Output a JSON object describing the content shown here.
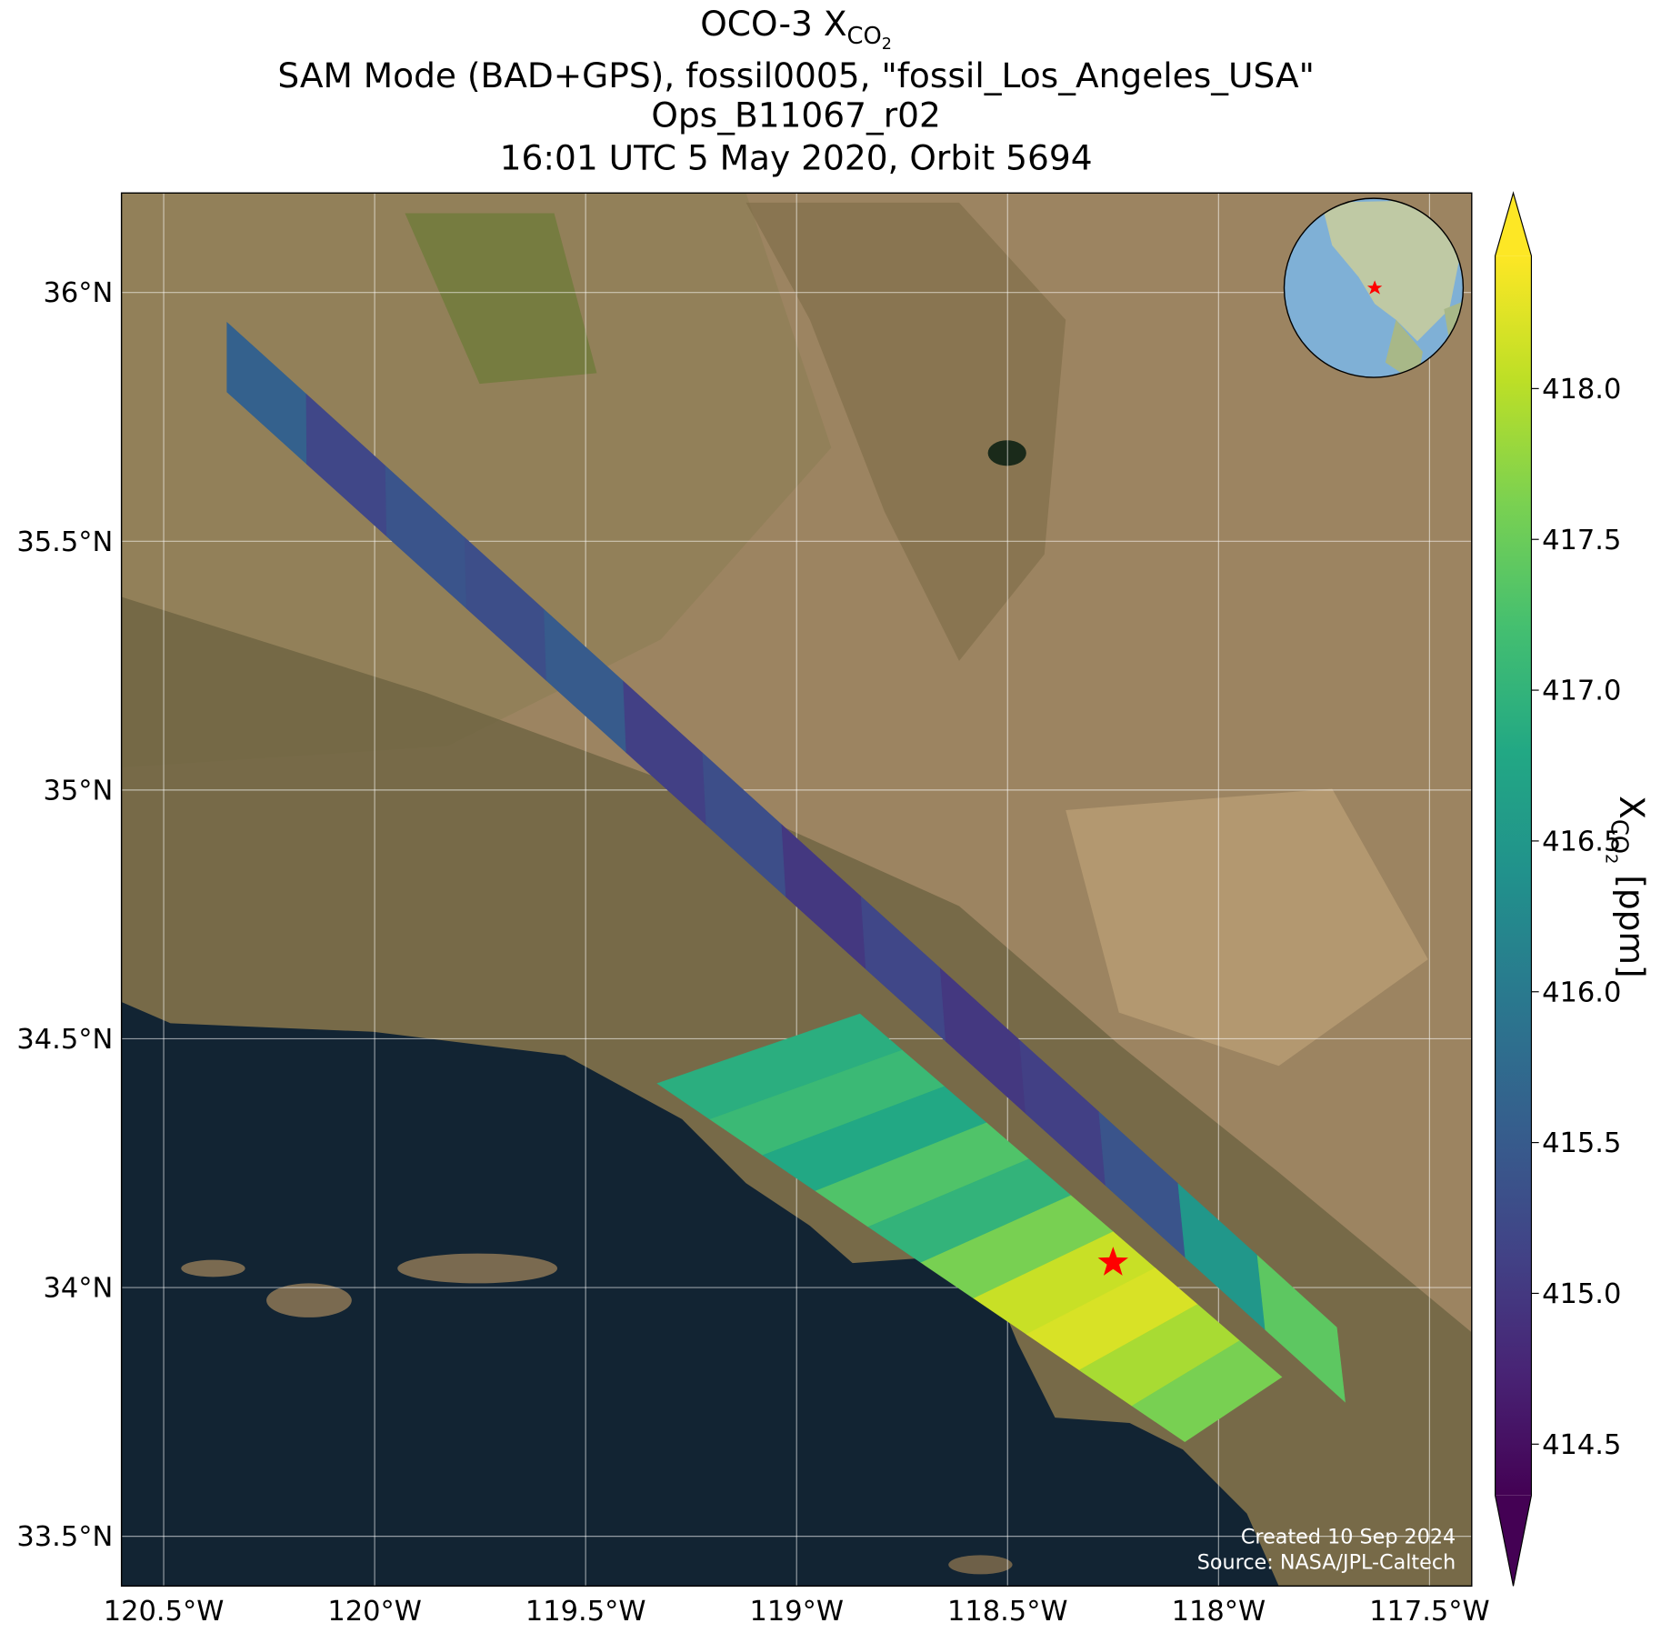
{
  "chart_data": {
    "type": "map",
    "title": {
      "line1": {
        "main": "OCO-3 X",
        "sub": "CO",
        "subsub": "2"
      },
      "line2": "SAM Mode (BAD+GPS), fossil0005, \"fossil_Los_Angeles_USA\"",
      "line3": "Ops_B11067_r02",
      "line4": "16:01 UTC 5 May 2020, Orbit 5694"
    },
    "xlim": [
      -120.6,
      -117.4
    ],
    "ylim": [
      33.4,
      36.2
    ],
    "xticks": [
      {
        "value": -120.5,
        "label": "120.5°W"
      },
      {
        "value": -120,
        "label": "120°W"
      },
      {
        "value": -119.5,
        "label": "119.5°W"
      },
      {
        "value": -119,
        "label": "119°W"
      },
      {
        "value": -118.5,
        "label": "118.5°W"
      },
      {
        "value": -118,
        "label": "118°W"
      },
      {
        "value": -117.5,
        "label": "117.5°W"
      }
    ],
    "yticks": [
      {
        "value": 33.5,
        "label": "33.5°N"
      },
      {
        "value": 34,
        "label": "34°N"
      },
      {
        "value": 34.5,
        "label": "34.5°N"
      },
      {
        "value": 35,
        "label": "35°N"
      },
      {
        "value": 35.5,
        "label": "35.5°N"
      },
      {
        "value": 36,
        "label": "36°N"
      }
    ],
    "grid": true,
    "colorbar": {
      "colormap": "viridis",
      "lim": [
        414.33,
        418.44
      ],
      "ticks": [
        {
          "value": 414.5,
          "label": "414.5"
        },
        {
          "value": 415,
          "label": "415.0"
        },
        {
          "value": 415.5,
          "label": "415.5"
        },
        {
          "value": 416,
          "label": "416.0"
        },
        {
          "value": 416.5,
          "label": "416.5"
        },
        {
          "value": 417,
          "label": "417.0"
        },
        {
          "value": 417.5,
          "label": "417.5"
        },
        {
          "value": 418,
          "label": "418.0"
        }
      ],
      "label": {
        "main": "X",
        "sub": "CO",
        "subsub": "2",
        "unit": " [ppm]"
      }
    },
    "swaths": [
      {
        "start": [
          [
            -120.35,
            35.94
          ],
          [
            -120.35,
            35.8
          ]
        ],
        "end": [
          [
            -117.72,
            33.92
          ],
          [
            -117.7,
            33.77
          ]
        ],
        "values": [
          415.6,
          415.2,
          415.4,
          415.3,
          415.5,
          415.1,
          415.3,
          415.0,
          415.2,
          415.0,
          415.1,
          415.4,
          416.5,
          417.4
        ]
      },
      {
        "start": [
          [
            -119.33,
            34.41
          ],
          [
            -118.85,
            34.55
          ]
        ],
        "end": [
          [
            -118.08,
            33.69
          ],
          [
            -117.85,
            33.82
          ]
        ],
        "values": [
          416.9,
          417.1,
          416.8,
          417.3,
          417.0,
          417.6,
          418.1,
          418.2,
          417.9,
          417.6
        ]
      }
    ],
    "target": {
      "lon": -118.25,
      "lat": 34.05,
      "color": "#ff0000"
    },
    "annotations": [
      "Created 10 Sep 2024",
      "Source: NASA/JPL-Caltech"
    ]
  }
}
